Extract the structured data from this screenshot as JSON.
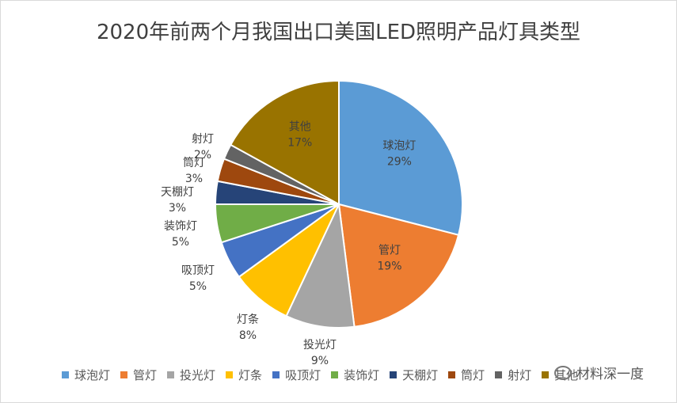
{
  "chart_data": {
    "type": "pie",
    "title": "2020年前两个月我国出口美国LED照明产品灯具类型",
    "categories": [
      "球泡灯",
      "管灯",
      "投光灯",
      "灯条",
      "吸顶灯",
      "装饰灯",
      "天棚灯",
      "筒灯",
      "射灯",
      "其他"
    ],
    "values": [
      29,
      19,
      9,
      8,
      5,
      5,
      3,
      3,
      2,
      17
    ],
    "labels": [
      "29%",
      "19%",
      "9%",
      "8%",
      "5%",
      "5%",
      "3%",
      "3%",
      "2%",
      "17%"
    ],
    "colors": [
      "#5B9BD5",
      "#ED7D31",
      "#A5A5A5",
      "#FFC000",
      "#4472C4",
      "#70AD47",
      "#264478",
      "#9E480E",
      "#636363",
      "#997300"
    ],
    "legend_position": "bottom",
    "start_angle": "12 o'clock, clockwise"
  },
  "watermark": "材料深一度"
}
